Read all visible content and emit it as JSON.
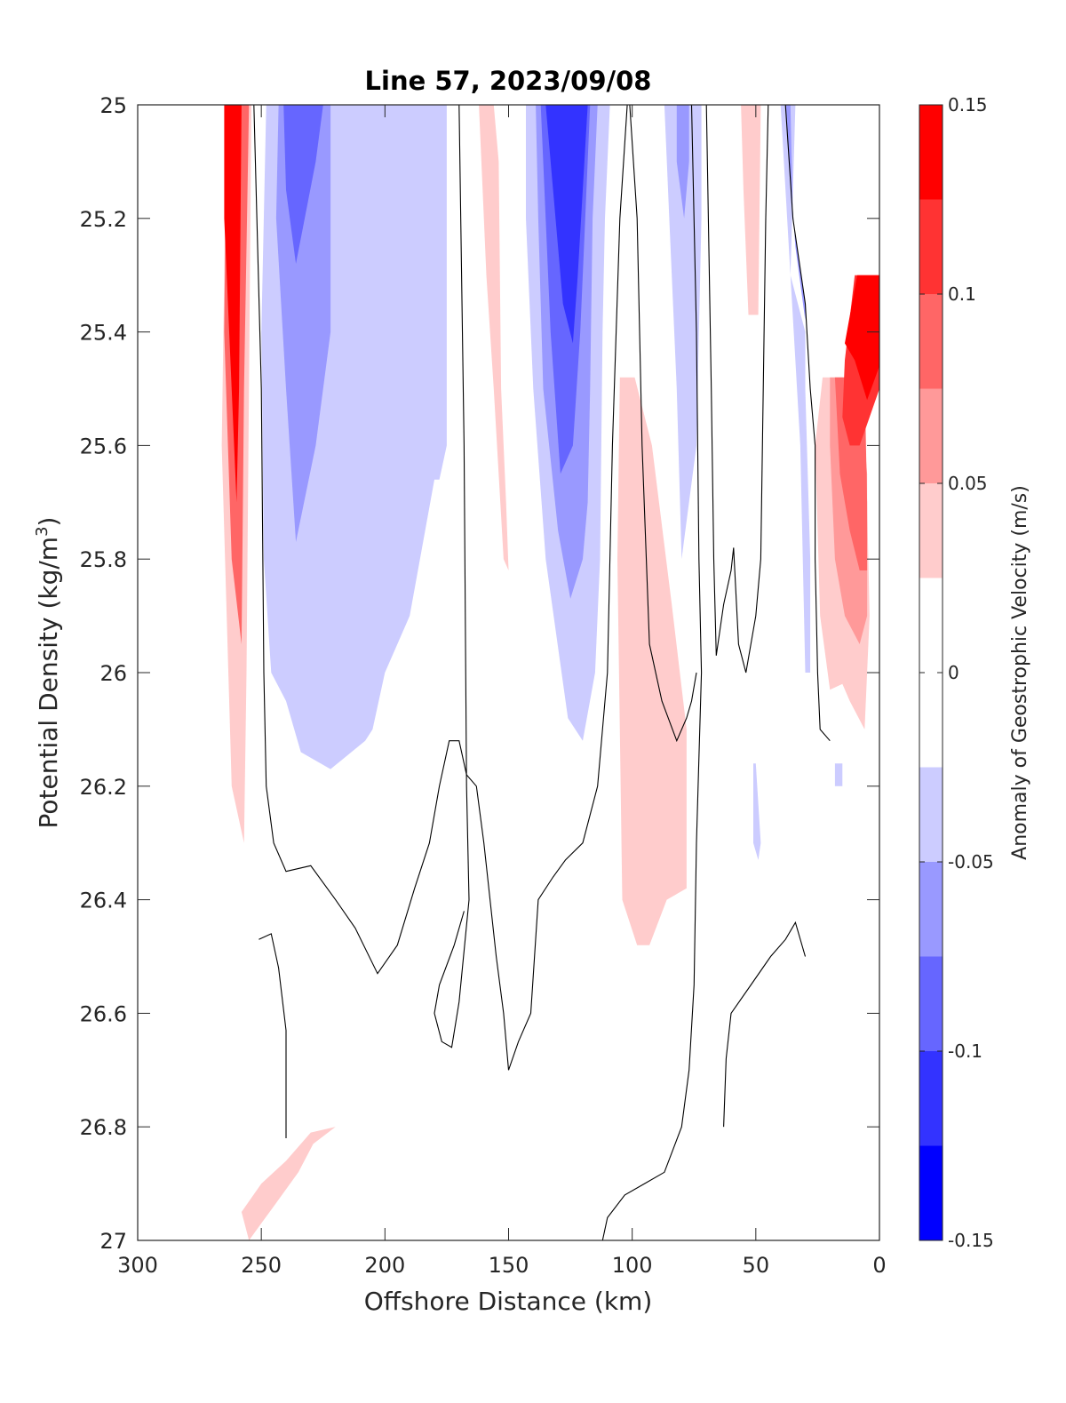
{
  "chart_data": {
    "type": "contourf",
    "title": "Line 57, 2023/09/08",
    "xlabel": "Offshore Distance (km)",
    "ylabel": "Potential Density (kg/m",
    "ylabel_sup": "3",
    "ylabel_tail": ")",
    "xlim": [
      300,
      0
    ],
    "x_reversed": true,
    "ylim": [
      25,
      27
    ],
    "y_reversed": true,
    "xticks": [
      300,
      250,
      200,
      150,
      100,
      50,
      0
    ],
    "xtick_labels": [
      "300",
      "250",
      "200",
      "150",
      "100",
      "50",
      "0"
    ],
    "yticks": [
      25,
      25.2,
      25.4,
      25.6,
      25.8,
      26,
      26.2,
      26.4,
      26.6,
      26.8,
      27
    ],
    "ytick_labels": [
      "25",
      "25.2",
      "25.4",
      "25.6",
      "25.8",
      "26",
      "26.2",
      "26.4",
      "26.6",
      "26.8",
      "27"
    ],
    "colorbar": {
      "label": "Anomaly of Geostrophic Velocity (m/s)",
      "range": [
        -0.15,
        0.15
      ],
      "ticks": [
        -0.15,
        -0.1,
        -0.05,
        0,
        0.05,
        0.1,
        0.15
      ],
      "tick_labels": [
        "-0.15",
        "-0.1",
        "-0.05",
        "0",
        "0.05",
        "0.1",
        "0.15"
      ],
      "levels": [
        -0.15,
        -0.125,
        -0.1,
        -0.075,
        -0.05,
        -0.025,
        0.025,
        0.05,
        0.075,
        0.1,
        0.125,
        0.15
      ],
      "colors": [
        "#0000ff",
        "#3333ff",
        "#6666ff",
        "#9999ff",
        "#ccccff",
        "#ffffff",
        "#ffcccc",
        "#ff9999",
        "#ff6666",
        "#ff3333",
        "#ff0000"
      ]
    },
    "regions": [
      {
        "level": 0.05,
        "poly": [
          [
            264,
            25
          ],
          [
            254,
            25
          ],
          [
            256,
            26.0
          ],
          [
            257,
            26.3
          ],
          [
            262,
            26.2
          ],
          [
            266,
            25.6
          ]
        ]
      },
      {
        "level": 0.1,
        "poly": [
          [
            264,
            25
          ],
          [
            255,
            25
          ],
          [
            257,
            25.5
          ],
          [
            258,
            25.95
          ],
          [
            262,
            25.8
          ],
          [
            265,
            25.4
          ]
        ]
      },
      {
        "level": 0.15,
        "poly": [
          [
            265,
            25
          ],
          [
            258,
            25
          ],
          [
            259,
            25.5
          ],
          [
            260,
            25.7
          ],
          [
            263,
            25.4
          ],
          [
            265,
            25.2
          ]
        ]
      },
      {
        "level": -0.05,
        "poly": [
          [
            248,
            25
          ],
          [
            175,
            25
          ],
          [
            175,
            25.6
          ],
          [
            178,
            25.66
          ],
          [
            180,
            25.66
          ],
          [
            190,
            25.9
          ],
          [
            195,
            25.95
          ],
          [
            200,
            26.0
          ],
          [
            205,
            26.1
          ],
          [
            208,
            26.12
          ],
          [
            222,
            26.17
          ],
          [
            226,
            26.16
          ],
          [
            234,
            26.14
          ],
          [
            240,
            26.05
          ],
          [
            246,
            26.0
          ],
          [
            249,
            25.8
          ],
          [
            250,
            25.4
          ]
        ]
      },
      {
        "level": -0.075,
        "poly": [
          [
            243,
            25
          ],
          [
            222,
            25
          ],
          [
            222,
            25.4
          ],
          [
            228,
            25.6
          ],
          [
            236,
            25.77
          ],
          [
            240,
            25.5
          ],
          [
            244,
            25.2
          ]
        ]
      },
      {
        "level": -0.1,
        "poly": [
          [
            241,
            25
          ],
          [
            225,
            25
          ],
          [
            228,
            25.1
          ],
          [
            236,
            25.28
          ],
          [
            240,
            25.15
          ]
        ]
      },
      {
        "level": -0.05,
        "poly": [
          [
            143,
            25
          ],
          [
            109,
            25
          ],
          [
            111,
            25.2
          ],
          [
            112,
            25.4
          ],
          [
            113,
            25.8
          ],
          [
            115,
            26.0
          ],
          [
            120,
            26.12
          ],
          [
            126,
            26.08
          ],
          [
            135,
            25.8
          ],
          [
            140,
            25.5
          ],
          [
            143,
            25.2
          ]
        ]
      },
      {
        "level": -0.075,
        "poly": [
          [
            139,
            25
          ],
          [
            114,
            25
          ],
          [
            116,
            25.2
          ],
          [
            117,
            25.5
          ],
          [
            118,
            25.7
          ],
          [
            120,
            25.8
          ],
          [
            125,
            25.87
          ],
          [
            130,
            25.75
          ],
          [
            136,
            25.5
          ],
          [
            138,
            25.2
          ]
        ]
      },
      {
        "level": -0.1,
        "poly": [
          [
            137,
            25
          ],
          [
            117,
            25
          ],
          [
            119,
            25.2
          ],
          [
            121,
            25.4
          ],
          [
            124,
            25.6
          ],
          [
            129,
            25.65
          ],
          [
            133,
            25.4
          ],
          [
            136,
            25.1
          ]
        ]
      },
      {
        "level": -0.125,
        "poly": [
          [
            135,
            25
          ],
          [
            118,
            25
          ],
          [
            120,
            25.15
          ],
          [
            122,
            25.3
          ],
          [
            124,
            25.42
          ],
          [
            128,
            25.35
          ],
          [
            132,
            25.15
          ]
        ]
      },
      {
        "level": -0.05,
        "poly": [
          [
            87,
            25
          ],
          [
            72,
            25
          ],
          [
            72,
            25.2
          ],
          [
            74,
            25.6
          ],
          [
            80,
            25.8
          ],
          [
            82,
            25.5
          ],
          [
            85,
            25.2
          ]
        ]
      },
      {
        "level": -0.075,
        "poly": [
          [
            82,
            25
          ],
          [
            77,
            25
          ],
          [
            77,
            25.1
          ],
          [
            79,
            25.2
          ],
          [
            82,
            25.1
          ]
        ]
      },
      {
        "level": -0.05,
        "poly": [
          [
            40,
            25
          ],
          [
            34,
            25
          ],
          [
            36,
            25.3
          ],
          [
            30,
            25.4
          ],
          [
            30,
            25.5
          ],
          [
            28,
            25.8
          ],
          [
            28,
            26.0
          ],
          [
            30,
            26.0
          ],
          [
            32,
            25.6
          ]
        ]
      },
      {
        "level": -0.075,
        "poly": [
          [
            38,
            25
          ],
          [
            36,
            25
          ],
          [
            35,
            25.2
          ],
          [
            30,
            25.35
          ],
          [
            30,
            25.38
          ],
          [
            34,
            25.25
          ]
        ]
      },
      {
        "level": 0.05,
        "poly": [
          [
            56,
            25
          ],
          [
            48,
            25
          ],
          [
            49,
            25.37
          ],
          [
            53,
            25.37
          ],
          [
            55,
            25.15
          ]
        ]
      },
      {
        "level": 0.05,
        "poly": [
          [
            162,
            25.0
          ],
          [
            156,
            25.0
          ],
          [
            154,
            25.1
          ],
          [
            153,
            25.5
          ],
          [
            151,
            25.7
          ],
          [
            150,
            25.82
          ],
          [
            152,
            25.8
          ],
          [
            156,
            25.5
          ],
          [
            159,
            25.3
          ],
          [
            161,
            25.1
          ]
        ]
      },
      {
        "level": 0.05,
        "poly": [
          [
            99,
            25.48
          ],
          [
            105,
            25.48
          ],
          [
            106,
            25.8
          ],
          [
            104,
            26.4
          ],
          [
            98,
            26.48
          ],
          [
            93,
            26.48
          ],
          [
            86,
            26.4
          ],
          [
            78,
            26.38
          ],
          [
            78,
            26.1
          ],
          [
            84,
            25.88
          ],
          [
            92,
            25.6
          ]
        ]
      },
      {
        "level": 0.05,
        "poly": [
          [
            23,
            25.48
          ],
          [
            15,
            25.48
          ],
          [
            8,
            25.5
          ],
          [
            5,
            25.7
          ],
          [
            4,
            25.9
          ],
          [
            6,
            26.1
          ],
          [
            12,
            26.05
          ],
          [
            15,
            26.02
          ],
          [
            20,
            26.03
          ],
          [
            24,
            25.9
          ],
          [
            26,
            25.6
          ]
        ]
      },
      {
        "level": 0.075,
        "poly": [
          [
            20,
            25.48
          ],
          [
            8,
            25.48
          ],
          [
            5,
            25.65
          ],
          [
            5,
            25.9
          ],
          [
            8,
            25.95
          ],
          [
            14,
            25.9
          ],
          [
            18,
            25.8
          ],
          [
            20,
            25.6
          ]
        ]
      },
      {
        "level": 0.1,
        "poly": [
          [
            18,
            25.48
          ],
          [
            6,
            25.48
          ],
          [
            5,
            25.7
          ],
          [
            5,
            25.82
          ],
          [
            8,
            25.82
          ],
          [
            12,
            25.75
          ],
          [
            16,
            25.65
          ]
        ]
      },
      {
        "level": 0.125,
        "poly": [
          [
            10,
            25.3
          ],
          [
            0,
            25.3
          ],
          [
            0,
            25.5
          ],
          [
            4,
            25.55
          ],
          [
            8,
            25.6
          ],
          [
            12,
            25.6
          ],
          [
            15,
            25.55
          ],
          [
            14,
            25.45
          ]
        ]
      },
      {
        "level": 0.15,
        "poly": [
          [
            9,
            25.3
          ],
          [
            0,
            25.3
          ],
          [
            0,
            25.46
          ],
          [
            5,
            25.52
          ],
          [
            10,
            25.45
          ],
          [
            14,
            25.42
          ]
        ]
      },
      {
        "level": -0.05,
        "poly": [
          [
            51,
            26.16
          ],
          [
            50,
            26.16
          ],
          [
            48,
            26.3
          ],
          [
            49,
            26.33
          ],
          [
            51,
            26.3
          ]
        ]
      },
      {
        "level": -0.05,
        "poly": [
          [
            18,
            26.16
          ],
          [
            15,
            26.16
          ],
          [
            15,
            26.2
          ],
          [
            18,
            26.2
          ]
        ]
      },
      {
        "level": 0.05,
        "poly": [
          [
            210,
            26.8
          ],
          [
            215,
            26.8
          ],
          [
            220,
            26.8
          ],
          [
            229,
            26.83
          ],
          [
            235,
            26.88
          ],
          [
            240,
            26.91
          ],
          [
            245,
            26.94
          ],
          [
            250,
            26.97
          ],
          [
            255,
            27.0
          ],
          [
            258,
            26.95
          ],
          [
            250,
            26.9
          ],
          [
            240,
            26.86
          ],
          [
            230,
            26.81
          ],
          [
            220,
            26.8
          ],
          [
            210,
            26.8
          ]
        ]
      }
    ]
  }
}
